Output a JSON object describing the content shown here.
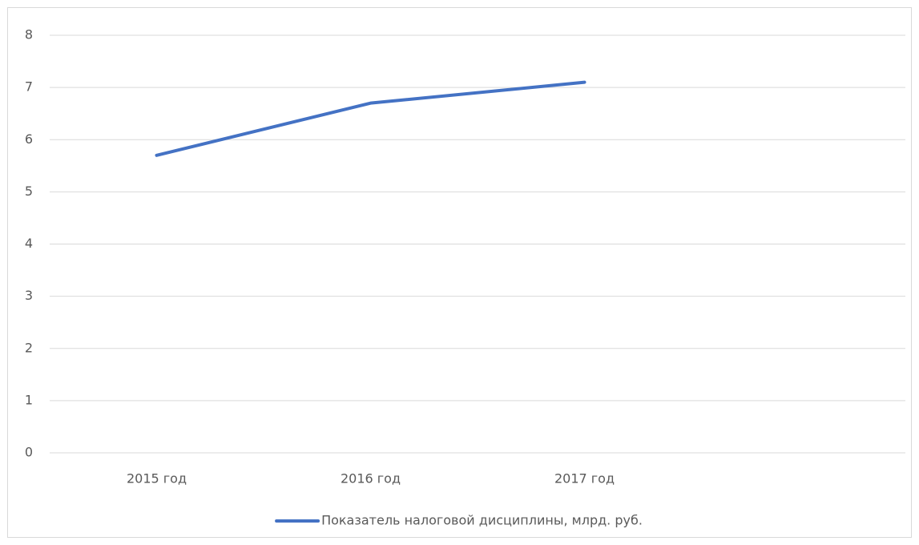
{
  "chart_data": {
    "type": "line",
    "categories": [
      "2015 год",
      "2016 год",
      "2017 год",
      null
    ],
    "series": [
      {
        "name": "Показатель налоговой дисциплины, млрд. руб.",
        "color": "#4472c4",
        "values": [
          5.7,
          6.7,
          7.1,
          null
        ]
      }
    ],
    "ylim": [
      0,
      8
    ],
    "yticks": [
      0,
      1,
      2,
      3,
      4,
      5,
      6,
      7,
      8
    ],
    "grid": true,
    "legend": "bottom"
  }
}
